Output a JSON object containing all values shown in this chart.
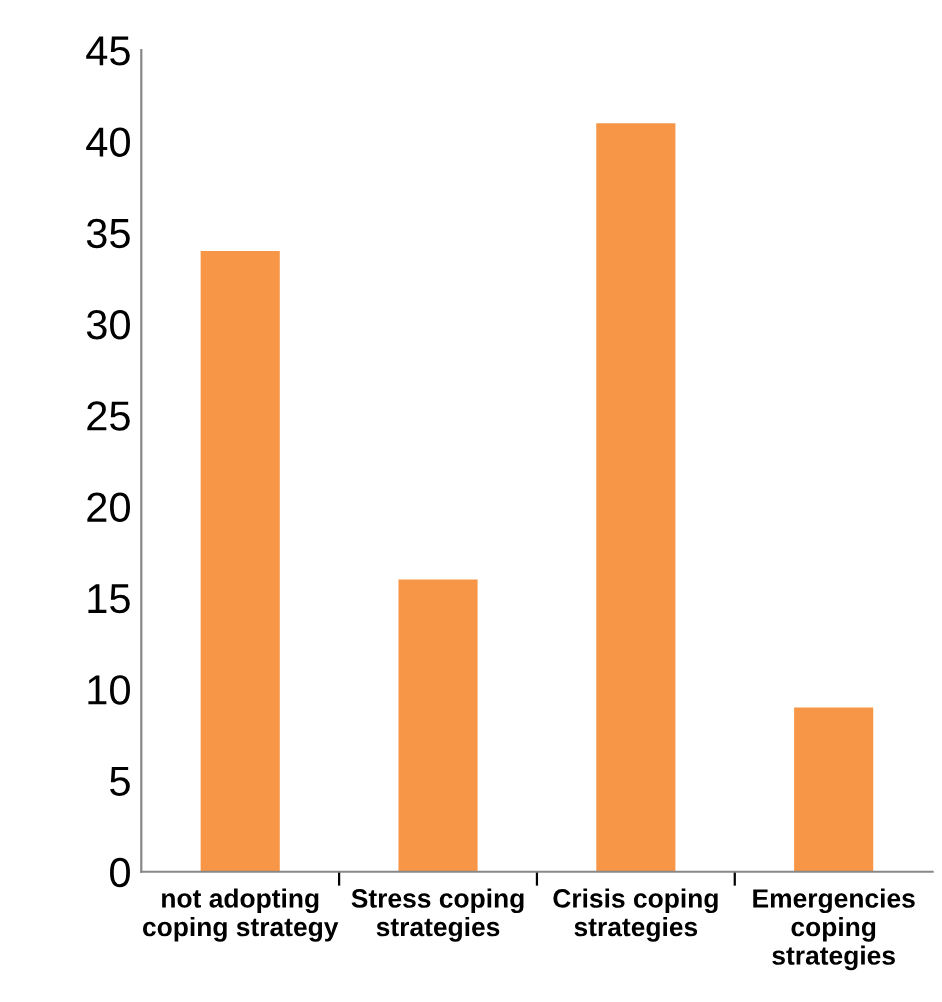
{
  "chart_data": {
    "type": "bar",
    "categories": [
      "not adopting\ncoping strategy",
      "Stress coping\nstrategies",
      "Crisis coping\nstrategies",
      "Emergencies\ncoping\nstrategies"
    ],
    "values": [
      34,
      16,
      41,
      9
    ],
    "color": "#f79646",
    "ylim": [
      0,
      45
    ],
    "yticks": [
      0,
      5,
      10,
      15,
      20,
      25,
      30,
      35,
      40,
      45
    ],
    "grid": false,
    "legend": false
  }
}
